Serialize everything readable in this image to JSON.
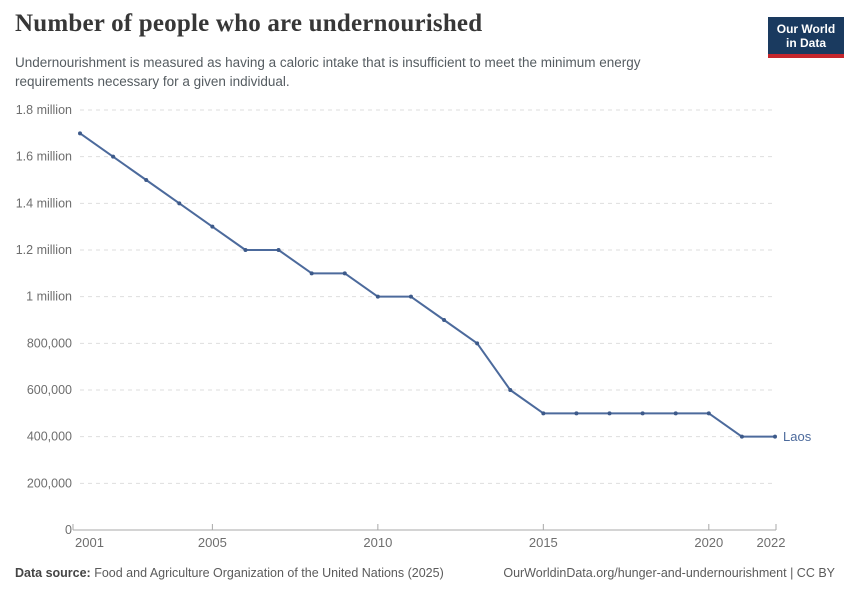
{
  "theme": {
    "accent": "#4c6a9c",
    "marker": "#3d5a8a",
    "grid": "#dedede",
    "axis": "#a8a8a8",
    "tick_text": "#6e6e6e",
    "logo_bg": "#1a3a5f",
    "logo_red": "#c5262c"
  },
  "header": {
    "title": "Number of people who are undernourished",
    "subtitle": "Undernourishment is measured as having a caloric intake that is insufficient to meet the minimum energy requirements necessary for a given individual.",
    "logo": {
      "line1": "Our World",
      "line2": "in Data"
    }
  },
  "chart_data": {
    "type": "line",
    "title": "Number of people who are undernourished",
    "xlabel": "",
    "ylabel": "",
    "xlim": [
      2001,
      2022
    ],
    "ylim": [
      0,
      1800000
    ],
    "grid": "dashed-horizontal",
    "legend_position": "end-of-line-label",
    "x": [
      2001,
      2002,
      2003,
      2004,
      2005,
      2006,
      2007,
      2008,
      2009,
      2010,
      2011,
      2012,
      2013,
      2014,
      2015,
      2016,
      2017,
      2018,
      2019,
      2020,
      2021,
      2022
    ],
    "series": [
      {
        "name": "Laos",
        "color": "#4c6a9c",
        "values": [
          1700000,
          1600000,
          1500000,
          1400000,
          1300000,
          1200000,
          1200000,
          1100000,
          1100000,
          1000000,
          1000000,
          900000,
          800000,
          600000,
          500000,
          500000,
          500000,
          500000,
          500000,
          500000,
          400000,
          400000
        ]
      }
    ],
    "xticks": [
      2001,
      2005,
      2010,
      2015,
      2020,
      2022
    ],
    "yticks": [
      {
        "value": 0,
        "label": "0"
      },
      {
        "value": 200000,
        "label": "200,000"
      },
      {
        "value": 400000,
        "label": "400,000"
      },
      {
        "value": 600000,
        "label": "600,000"
      },
      {
        "value": 800000,
        "label": "800,000"
      },
      {
        "value": 1000000,
        "label": "1 million"
      },
      {
        "value": 1200000,
        "label": "1.2 million"
      },
      {
        "value": 1400000,
        "label": "1.4 million"
      },
      {
        "value": 1600000,
        "label": "1.6 million"
      },
      {
        "value": 1800000,
        "label": "1.8 million"
      }
    ],
    "end_label": "Laos"
  },
  "footer": {
    "source_label": "Data source:",
    "source_text": "Food and Agriculture Organization of the United Nations (2025)",
    "credit": "OurWorldinData.org/hunger-and-undernourishment | CC BY"
  }
}
